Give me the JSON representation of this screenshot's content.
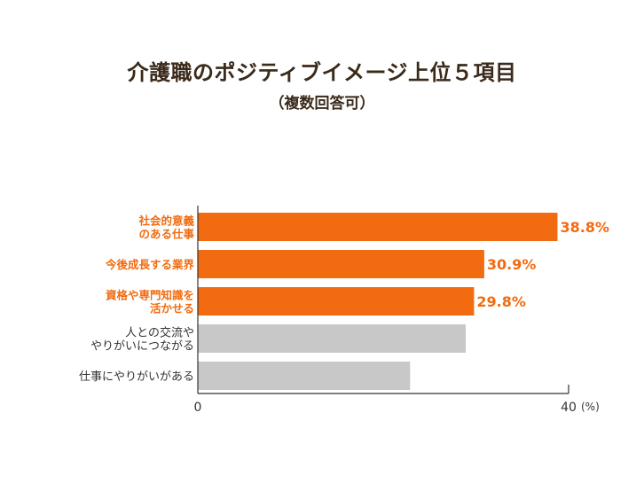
{
  "title": "介護職のポジティブイメージ上位５項目",
  "subtitle": "（複数回答可）",
  "colors": {
    "highlight": "#F26B10",
    "muted": "#C8C8C8",
    "axis": "#333333",
    "text_dark": "#333333"
  },
  "chart_data": {
    "type": "bar",
    "orientation": "horizontal",
    "categories": [
      [
        "社会的意義",
        "のある仕事"
      ],
      [
        "今後成長する業界"
      ],
      [
        "資格や専門知識を",
        "活かせる"
      ],
      [
        "人との交流や",
        "やりがいにつながる"
      ],
      [
        "仕事にやりがいがある"
      ]
    ],
    "values": [
      38.8,
      30.9,
      29.8,
      28.9,
      22.9
    ],
    "value_labels": [
      "38.8%",
      "30.9%",
      "29.8%",
      "",
      ""
    ],
    "highlighted": [
      true,
      true,
      true,
      false,
      false
    ],
    "xlim": [
      0,
      40
    ],
    "x_ticks": [
      "0",
      "40"
    ],
    "x_unit": "(%)",
    "grid": false
  }
}
